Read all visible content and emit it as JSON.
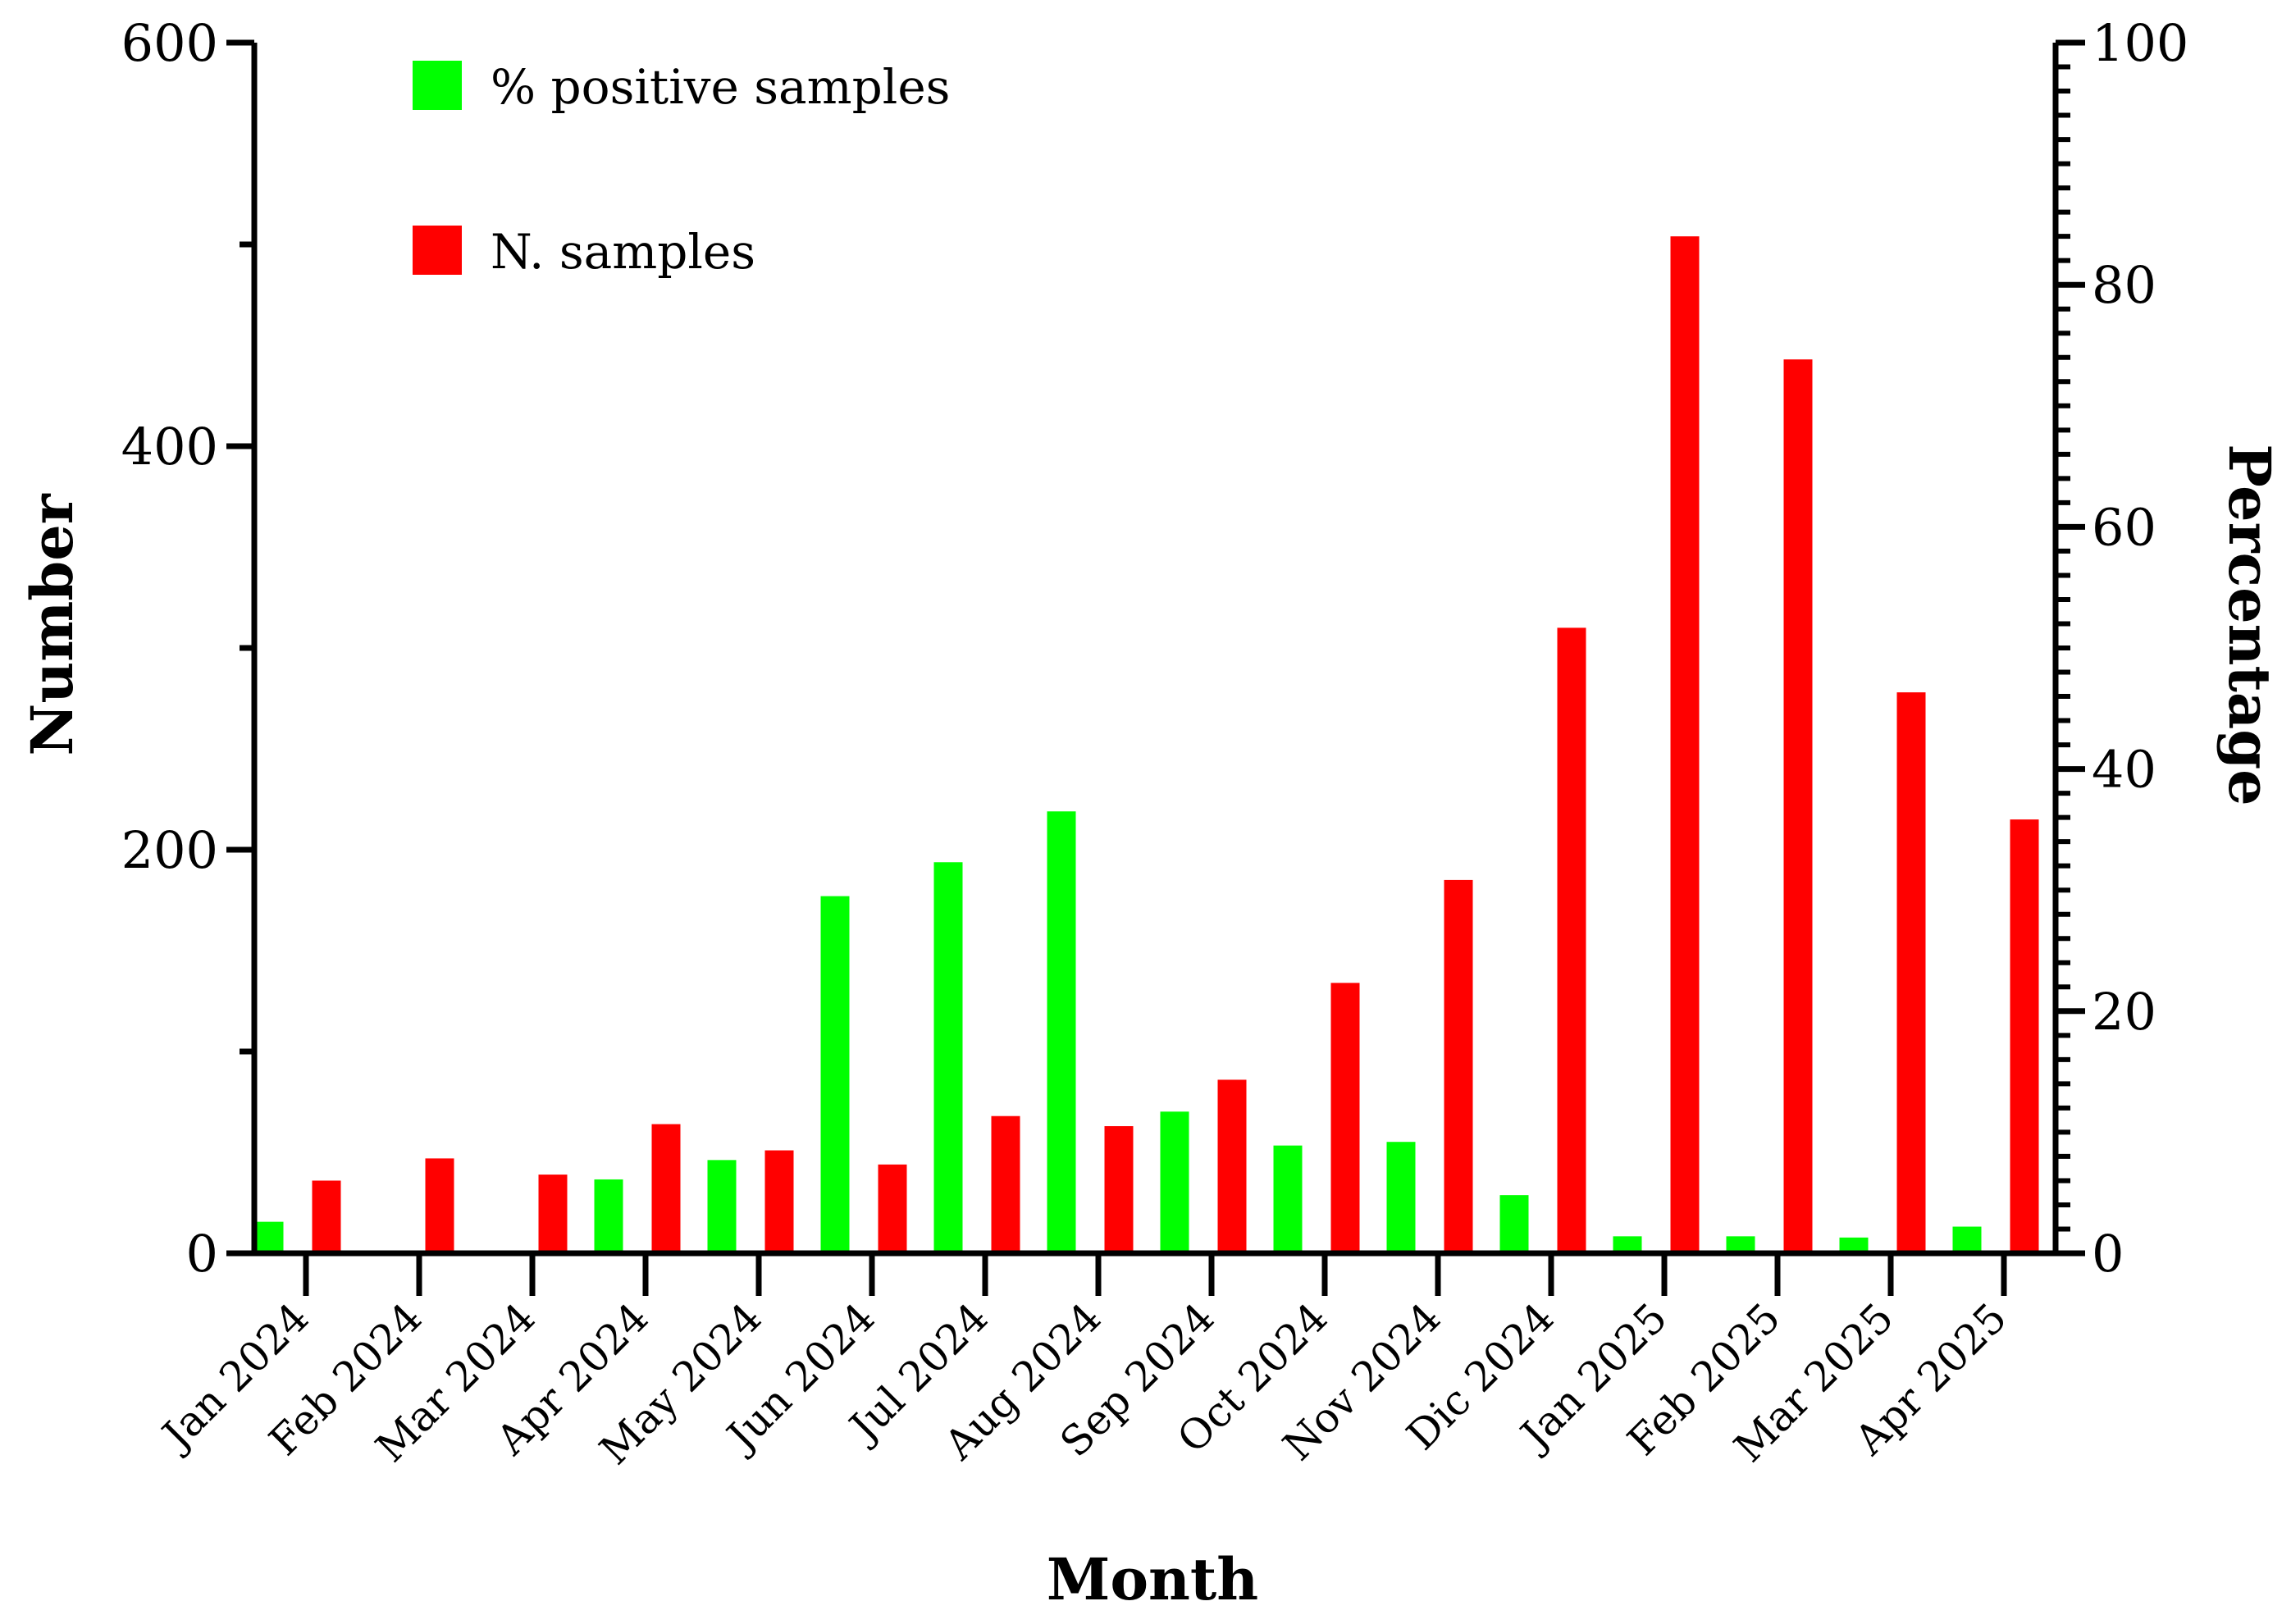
{
  "chart_data": {
    "type": "bar",
    "xlabel": "Month",
    "ylabel_left": "Number",
    "ylabel_right": "Percentage",
    "ylim_left": [
      0,
      600
    ],
    "ylim_right": [
      0,
      100
    ],
    "yticks_left": [
      "0",
      "200",
      "400",
      "600"
    ],
    "yticks_right": [
      "0",
      "20",
      "40",
      "60",
      "80",
      "100"
    ],
    "categories": [
      "Jan 2024",
      "Feb 2024",
      "Mar 2024",
      "Apr 2024",
      "May 2024",
      "Jun 2024",
      "Jul 2024",
      "Aug 2024",
      "Sep 2024",
      "Oct 2024",
      "Nov 2024",
      "Dic 2024",
      "Jan 2025",
      "Feb 2025",
      "Mar 2025",
      "Apr 2025"
    ],
    "series": [
      {
        "name": "% positive samples",
        "axis": "right",
        "color": "#00ff00",
        "values": [
          2.6,
          0,
          0,
          6.1,
          7.7,
          29.5,
          32.3,
          36.5,
          11.7,
          8.9,
          9.2,
          4.8,
          1.4,
          1.4,
          1.3,
          2.2
        ]
      },
      {
        "name": "N. samples",
        "axis": "left",
        "color": "#ff0000",
        "values": [
          36,
          47,
          39,
          64,
          51,
          44,
          68,
          63,
          86,
          134,
          185,
          310,
          504,
          443,
          278,
          215
        ]
      }
    ],
    "legend": [
      "% positive samples",
      "N. samples"
    ],
    "legend_position": "top-left",
    "grid": false
  }
}
